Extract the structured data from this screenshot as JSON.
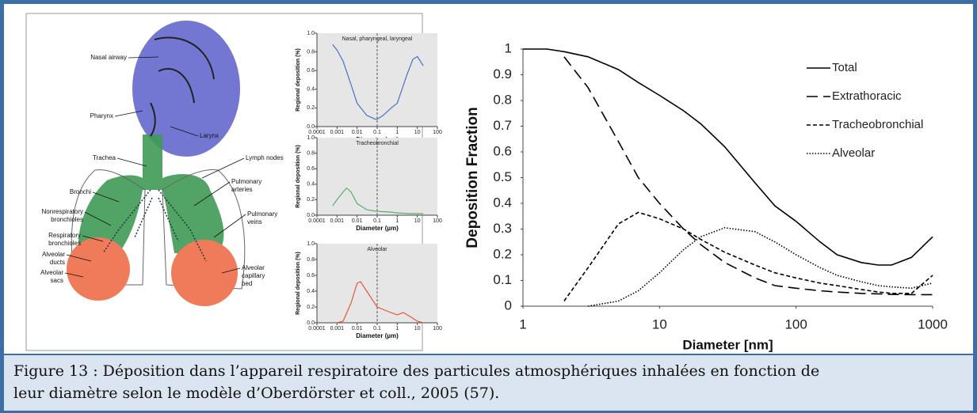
{
  "anatomy_labels": [
    [
      "Nasal airway"
    ],
    [
      "Pharynx"
    ],
    [
      "Larynx"
    ],
    [
      "Trachea"
    ],
    [
      "Lymph nodes"
    ],
    [
      "Pulmonary",
      "arteries"
    ],
    [
      "Bronchi"
    ],
    [
      "Nonrespiratory",
      "bronchioles"
    ],
    [
      "Pulmonary",
      "veins"
    ],
    [
      "Respiratory",
      "bronchioles"
    ],
    [
      "Alveolar",
      "ducts"
    ],
    [
      "Alveolar",
      "sacs"
    ],
    [
      "Alveolar",
      "capillary",
      "bed"
    ]
  ],
  "chart_data": [
    {
      "type": "line",
      "title": "Nasal, pharyngeal, laryngeal",
      "ylabel": "Regional deposition (%)",
      "xlabel": "Diameter (µm)",
      "xscale": "log",
      "xlim": [
        0.0001,
        100
      ],
      "xticks": [
        0.0001,
        0.001,
        0.01,
        0.1,
        1,
        10,
        100
      ],
      "ylim": [
        0,
        1
      ],
      "yticks": [
        {
          "value": 0,
          "label": "0.0"
        },
        0.2,
        0.4,
        0.6,
        0.8,
        {
          "value": 1,
          "label": "1.0"
        }
      ],
      "vline": 0.1,
      "x": [
        0.0006,
        0.001,
        0.002,
        0.005,
        0.01,
        0.03,
        0.08,
        0.1,
        0.2,
        0.5,
        1,
        3,
        6,
        10,
        20
      ],
      "series": [
        {
          "color": "#4a72c4",
          "line_style": "solid",
          "values": [
            0.88,
            0.82,
            0.7,
            0.45,
            0.25,
            0.12,
            0.08,
            0.08,
            0.12,
            0.2,
            0.25,
            0.55,
            0.72,
            0.75,
            0.65
          ]
        }
      ]
    },
    {
      "type": "line",
      "title": "Tracheobronchial",
      "ylabel": "Regional deposition (%)",
      "xlabel": "Diameter (µm)",
      "xscale": "log",
      "xlim": [
        0.0001,
        100
      ],
      "xticks": [
        0.0001,
        0.001,
        0.01,
        0.1,
        1,
        10,
        100
      ],
      "ylim": [
        0,
        1
      ],
      "yticks": [
        {
          "value": 0,
          "label": "0.0"
        },
        0.2,
        0.4,
        0.6,
        0.8,
        {
          "value": 1,
          "label": "1.0"
        }
      ],
      "vline": 0.1,
      "x": [
        0.0006,
        0.001,
        0.002,
        0.003,
        0.005,
        0.01,
        0.03,
        0.1,
        0.5,
        1,
        5,
        20
      ],
      "series": [
        {
          "color": "#5aad6a",
          "line_style": "solid",
          "values": [
            0.12,
            0.2,
            0.3,
            0.35,
            0.3,
            0.15,
            0.07,
            0.05,
            0.04,
            0.03,
            0.02,
            0.02
          ]
        }
      ]
    },
    {
      "type": "line",
      "title": "Alveolar",
      "ylabel": "Regional deposition (%)",
      "xlabel": "Diameter (µm)",
      "xscale": "log",
      "xlim": [
        0.0001,
        100
      ],
      "xticks": [
        0.0001,
        0.001,
        0.01,
        0.1,
        1,
        10,
        100
      ],
      "ylim": [
        0,
        1
      ],
      "yticks": [
        {
          "value": 0,
          "label": "0.0"
        },
        0.2,
        0.4,
        0.6,
        0.8,
        {
          "value": 1,
          "label": "1.0"
        }
      ],
      "vline": 0.1,
      "x": [
        0.001,
        0.002,
        0.005,
        0.01,
        0.015,
        0.03,
        0.1,
        0.3,
        1,
        2,
        5,
        10,
        20
      ],
      "series": [
        {
          "color": "#e8553a",
          "line_style": "solid",
          "values": [
            0,
            0.02,
            0.25,
            0.5,
            0.52,
            0.4,
            0.2,
            0.15,
            0.1,
            0.13,
            0.07,
            0.02,
            0
          ]
        }
      ]
    },
    {
      "type": "line",
      "xlabel": "Diameter [nm]",
      "ylabel": "Deposition Fraction",
      "legend": "right",
      "xscale": "log",
      "xlim": [
        1,
        1000
      ],
      "xticks": [
        1,
        10,
        100,
        1000
      ],
      "ylim": [
        0,
        1
      ],
      "yticks": [
        0,
        0.1,
        0.2,
        0.3,
        0.4,
        0.5,
        0.6,
        0.7,
        0.8,
        0.9,
        1
      ],
      "x": [
        1,
        1.5,
        2,
        3,
        5,
        7,
        10,
        15,
        20,
        30,
        50,
        70,
        100,
        150,
        200,
        300,
        400,
        500,
        700,
        1000
      ],
      "series": [
        {
          "name": "Total",
          "color": "#000000",
          "line_style": "solid",
          "values": [
            1,
            1,
            0.99,
            0.97,
            0.92,
            0.87,
            0.82,
            0.76,
            0.71,
            0.62,
            0.48,
            0.39,
            0.33,
            0.25,
            0.2,
            0.17,
            0.16,
            0.16,
            0.19,
            0.27
          ]
        },
        {
          "name": "Extrathoracic",
          "color": "#000000",
          "line_style": "long-dash",
          "values": [
            null,
            null,
            0.97,
            0.85,
            0.64,
            0.5,
            0.4,
            0.3,
            0.24,
            0.17,
            0.11,
            0.08,
            0.07,
            0.06,
            0.055,
            0.05,
            0.048,
            0.046,
            0.045,
            0.045
          ]
        },
        {
          "name": "Tracheobronchial",
          "color": "#000000",
          "line_style": "short-dash",
          "values": [
            null,
            null,
            0.02,
            0.15,
            0.32,
            0.365,
            0.34,
            0.3,
            0.26,
            0.21,
            0.16,
            0.13,
            0.11,
            0.09,
            0.08,
            0.065,
            0.055,
            0.05,
            0.05,
            0.12
          ]
        },
        {
          "name": "Alveolar",
          "color": "#000000",
          "line_style": "dotted",
          "values": [
            null,
            null,
            null,
            0,
            0.02,
            0.06,
            0.13,
            0.22,
            0.27,
            0.305,
            0.29,
            0.25,
            0.2,
            0.15,
            0.12,
            0.095,
            0.08,
            0.075,
            0.07,
            0.09
          ]
        }
      ]
    }
  ],
  "caption": {
    "lines": [
      "Figure 13 : Déposition dans l’appareil respiratoire des particules atmosphériques inhalées en fonction de",
      "leur diamètre selon le modèle d’Oberdörster et coll., 2005 (57)."
    ]
  }
}
